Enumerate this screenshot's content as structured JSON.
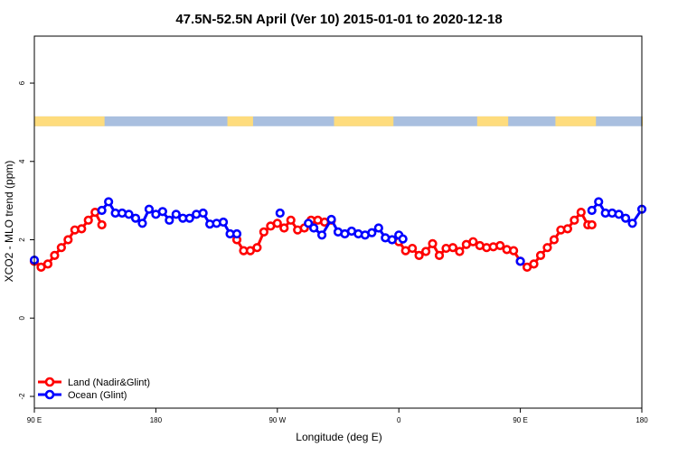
{
  "chart_data": {
    "type": "line",
    "title": "47.5N-52.5N April (Ver 10)   2015-01-01 to 2020-12-18",
    "xlabel": "Longitude (deg E)",
    "ylabel": "XCO2 - MLO trend (ppm)",
    "x_ticks": [
      {
        "value": 90,
        "label": "90 E"
      },
      {
        "value": 180,
        "label": "180"
      },
      {
        "value": 270,
        "label": "90 W"
      },
      {
        "value": 360,
        "label": "0"
      },
      {
        "value": 450,
        "label": "90 E"
      },
      {
        "value": 540,
        "label": "180"
      }
    ],
    "y_ticks": [
      {
        "value": -2,
        "label": "-2"
      },
      {
        "value": 0,
        "label": "0"
      },
      {
        "value": 2,
        "label": "2"
      },
      {
        "value": 4,
        "label": "4"
      },
      {
        "value": 6,
        "label": "6"
      }
    ],
    "xlim": [
      90,
      540
    ],
    "ylim": [
      -2.3,
      7.2
    ],
    "grid": false,
    "legend_position": "bottom-left",
    "surface_band": {
      "y_range": [
        4.9,
        5.15
      ],
      "land_color": "#FEDC7D",
      "ocean_color": "#A9BFDF",
      "land_segments": [
        [
          90,
          142
        ],
        [
          233,
          252
        ],
        [
          312,
          356
        ],
        [
          418,
          441
        ],
        [
          476,
          506
        ],
        [
          540,
          540
        ]
      ]
    },
    "series": [
      {
        "name": "Land (Nadir&Glint)",
        "color": "#FF0000",
        "x": [
          90,
          95,
          100,
          105,
          110,
          115,
          120,
          125,
          130,
          135,
          140,
          240,
          245,
          250,
          255,
          260,
          265,
          270,
          275,
          280,
          285,
          290,
          295,
          300,
          305,
          310,
          360,
          365,
          370,
          375,
          380,
          385,
          390,
          395,
          400,
          405,
          410,
          415,
          420,
          425,
          430,
          435,
          440,
          445,
          450,
          455,
          460,
          465,
          470,
          475,
          480,
          485,
          490,
          495,
          500,
          503
        ],
        "y": [
          1.45,
          1.3,
          1.38,
          1.6,
          1.8,
          2.0,
          2.25,
          2.28,
          2.5,
          2.7,
          2.38,
          2.0,
          1.72,
          1.72,
          1.8,
          2.2,
          2.35,
          2.42,
          2.3,
          2.5,
          2.25,
          2.3,
          2.5,
          2.5,
          2.45,
          2.5,
          1.95,
          1.72,
          1.78,
          1.6,
          1.7,
          1.9,
          1.6,
          1.78,
          1.8,
          1.7,
          1.88,
          1.95,
          1.85,
          1.8,
          1.82,
          1.85,
          1.75,
          1.72,
          1.45,
          1.3,
          1.38,
          1.6,
          1.8,
          2.0,
          2.25,
          2.28,
          2.5,
          2.7,
          2.38,
          2.38
        ]
      },
      {
        "name": "Ocean (Glint)",
        "color": "#0000FF",
        "x": [
          90,
          140,
          145,
          150,
          155,
          160,
          165,
          170,
          175,
          180,
          185,
          190,
          195,
          200,
          205,
          210,
          215,
          220,
          225,
          230,
          235,
          240,
          272,
          293,
          297,
          303,
          310,
          315,
          320,
          325,
          330,
          335,
          340,
          345,
          350,
          355,
          360,
          363,
          450,
          503,
          508,
          513,
          518,
          523,
          528,
          533,
          540
        ],
        "y": [
          1.48,
          2.75,
          2.97,
          2.68,
          2.68,
          2.65,
          2.55,
          2.42,
          2.78,
          2.65,
          2.72,
          2.5,
          2.65,
          2.55,
          2.55,
          2.65,
          2.68,
          2.4,
          2.42,
          2.45,
          2.15,
          2.15,
          2.68,
          2.42,
          2.3,
          2.12,
          2.52,
          2.2,
          2.15,
          2.22,
          2.15,
          2.12,
          2.18,
          2.3,
          2.05,
          2.0,
          2.12,
          2.02,
          1.45,
          2.75,
          2.97,
          2.68,
          2.68,
          2.65,
          2.55,
          2.42,
          2.78
        ]
      }
    ]
  }
}
